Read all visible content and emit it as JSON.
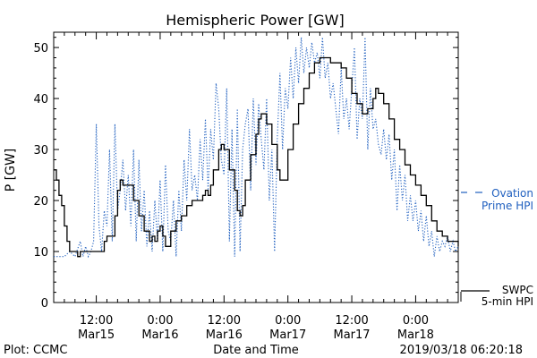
{
  "chart_data": {
    "type": "line",
    "title": "Hemispheric Power [GW]",
    "ylabel": "P [GW]",
    "xlabel": "Date and Time",
    "ylim": [
      0,
      53
    ],
    "yticks": [
      0,
      10,
      20,
      30,
      40,
      50
    ],
    "xlim_hours": [
      0,
      76
    ],
    "x_ticks": [
      {
        "label": "12:00",
        "date": "Mar15"
      },
      {
        "label": "0:00",
        "date": "Mar16"
      },
      {
        "label": "12:00",
        "date": "Mar16"
      },
      {
        "label": "0:00",
        "date": "Mar17"
      },
      {
        "label": "12:00",
        "date": "Mar17"
      },
      {
        "label": "0:00",
        "date": "Mar18"
      }
    ],
    "grid": false,
    "colors": {
      "swpc": "#000000",
      "ovation": "#1f5fbf"
    },
    "series": [
      {
        "key": "swpc",
        "legend_line1": "SWPC",
        "legend_line2": "5-min HPI",
        "style": "solid",
        "points": [
          [
            0,
            26
          ],
          [
            0.5,
            24
          ],
          [
            1,
            21
          ],
          [
            1.5,
            19
          ],
          [
            2,
            15
          ],
          [
            2.5,
            12
          ],
          [
            3,
            10
          ],
          [
            4,
            10
          ],
          [
            4.5,
            9
          ],
          [
            5,
            10
          ],
          [
            6,
            10
          ],
          [
            7,
            10
          ],
          [
            8,
            10
          ],
          [
            9,
            10
          ],
          [
            9.5,
            12
          ],
          [
            10,
            13
          ],
          [
            11,
            13
          ],
          [
            11.5,
            17
          ],
          [
            12,
            22
          ],
          [
            12.5,
            24
          ],
          [
            13,
            23
          ],
          [
            14,
            23
          ],
          [
            15,
            20
          ],
          [
            16,
            17
          ],
          [
            17,
            14
          ],
          [
            18,
            12
          ],
          [
            18.5,
            13
          ],
          [
            19,
            12
          ],
          [
            19.5,
            14
          ],
          [
            20,
            15
          ],
          [
            20.5,
            13
          ],
          [
            21,
            11
          ],
          [
            21.5,
            11
          ],
          [
            22,
            14
          ],
          [
            23,
            16
          ],
          [
            24,
            17
          ],
          [
            25,
            19
          ],
          [
            26,
            20
          ],
          [
            27,
            20
          ],
          [
            28,
            21
          ],
          [
            28.5,
            22
          ],
          [
            29,
            21
          ],
          [
            29.5,
            23
          ],
          [
            30,
            26
          ],
          [
            31,
            30
          ],
          [
            31.5,
            31
          ],
          [
            32,
            30
          ],
          [
            33,
            26
          ],
          [
            34,
            22
          ],
          [
            34.5,
            18
          ],
          [
            35,
            17
          ],
          [
            35.5,
            19
          ],
          [
            36,
            24
          ],
          [
            37,
            29
          ],
          [
            38,
            33
          ],
          [
            38.5,
            36
          ],
          [
            39,
            37
          ],
          [
            40,
            35
          ],
          [
            41,
            31
          ],
          [
            42,
            26
          ],
          [
            42.5,
            24
          ],
          [
            43,
            24
          ],
          [
            44,
            30
          ],
          [
            45,
            35
          ],
          [
            46,
            39
          ],
          [
            47,
            42
          ],
          [
            48,
            45
          ],
          [
            49,
            47
          ],
          [
            50,
            48
          ],
          [
            51,
            48
          ],
          [
            52,
            47
          ],
          [
            53,
            47
          ],
          [
            54,
            46
          ],
          [
            55,
            44
          ],
          [
            56,
            41
          ],
          [
            57,
            39
          ],
          [
            58,
            37
          ],
          [
            59,
            38
          ],
          [
            60,
            40
          ],
          [
            60.5,
            42
          ],
          [
            61,
            41
          ],
          [
            62,
            39
          ],
          [
            63,
            36
          ],
          [
            64,
            32
          ],
          [
            65,
            30
          ],
          [
            66,
            27
          ],
          [
            67,
            25
          ],
          [
            68,
            23
          ],
          [
            69,
            21
          ],
          [
            70,
            19
          ],
          [
            71,
            16
          ],
          [
            72,
            14
          ],
          [
            73,
            13
          ],
          [
            74,
            12
          ],
          [
            75,
            12
          ],
          [
            76,
            11
          ]
        ]
      },
      {
        "key": "ovation",
        "legend_line1": "Ovation",
        "legend_line2": "Prime HPI",
        "style": "dotted",
        "points": [
          [
            0,
            9
          ],
          [
            1,
            9
          ],
          [
            2,
            9
          ],
          [
            3,
            10
          ],
          [
            4,
            9
          ],
          [
            5,
            12
          ],
          [
            5.5,
            9
          ],
          [
            6,
            11
          ],
          [
            6.5,
            9
          ],
          [
            7,
            10
          ],
          [
            7.5,
            12
          ],
          [
            8,
            35
          ],
          [
            8.5,
            15
          ],
          [
            9,
            10
          ],
          [
            9.5,
            18
          ],
          [
            10,
            15
          ],
          [
            10.5,
            30
          ],
          [
            11,
            12
          ],
          [
            11.5,
            35
          ],
          [
            12,
            18
          ],
          [
            12.5,
            22
          ],
          [
            13,
            28
          ],
          [
            13.5,
            18
          ],
          [
            14,
            25
          ],
          [
            14.5,
            15
          ],
          [
            15,
            30
          ],
          [
            15.5,
            12
          ],
          [
            16,
            28
          ],
          [
            16.5,
            14
          ],
          [
            17,
            22
          ],
          [
            17.5,
            11
          ],
          [
            18,
            18
          ],
          [
            18.5,
            10
          ],
          [
            19,
            20
          ],
          [
            19.5,
            12
          ],
          [
            20,
            24
          ],
          [
            20.5,
            10
          ],
          [
            21,
            27
          ],
          [
            21.5,
            14
          ],
          [
            22,
            12
          ],
          [
            22.5,
            20
          ],
          [
            23,
            9
          ],
          [
            23.5,
            22
          ],
          [
            24,
            14
          ],
          [
            24.5,
            28
          ],
          [
            25,
            20
          ],
          [
            25.5,
            34
          ],
          [
            26,
            22
          ],
          [
            26.5,
            25
          ],
          [
            27,
            20
          ],
          [
            27.5,
            32
          ],
          [
            28,
            24
          ],
          [
            28.5,
            36
          ],
          [
            29,
            22
          ],
          [
            29.5,
            34
          ],
          [
            30,
            28
          ],
          [
            30.5,
            43
          ],
          [
            31,
            38
          ],
          [
            31.5,
            28
          ],
          [
            32,
            25
          ],
          [
            32.5,
            42
          ],
          [
            33,
            12
          ],
          [
            33.5,
            34
          ],
          [
            34,
            9
          ],
          [
            34.5,
            38
          ],
          [
            35,
            10
          ],
          [
            35.5,
            30
          ],
          [
            36,
            35
          ],
          [
            36.5,
            38
          ],
          [
            37,
            22
          ],
          [
            37.5,
            40
          ],
          [
            38,
            27
          ],
          [
            38.5,
            39
          ],
          [
            39,
            32
          ],
          [
            39.5,
            26
          ],
          [
            40,
            40
          ],
          [
            40.5,
            20
          ],
          [
            41,
            30
          ],
          [
            41.5,
            10
          ],
          [
            42,
            32
          ],
          [
            42.5,
            45
          ],
          [
            43,
            30
          ],
          [
            43.5,
            42
          ],
          [
            44,
            38
          ],
          [
            44.5,
            48
          ],
          [
            45,
            40
          ],
          [
            45.5,
            50
          ],
          [
            46,
            43
          ],
          [
            46.5,
            52
          ],
          [
            47,
            45
          ],
          [
            47.5,
            50
          ],
          [
            48,
            46
          ],
          [
            48.5,
            51
          ],
          [
            49,
            47
          ],
          [
            49.5,
            49
          ],
          [
            50,
            44
          ],
          [
            50.5,
            52
          ],
          [
            51,
            44
          ],
          [
            51.5,
            47
          ],
          [
            52,
            40
          ],
          [
            52.5,
            43
          ],
          [
            53,
            38
          ],
          [
            53.5,
            33
          ],
          [
            54,
            46
          ],
          [
            54.5,
            36
          ],
          [
            55,
            40
          ],
          [
            55.5,
            34
          ],
          [
            56,
            42
          ],
          [
            56.5,
            50
          ],
          [
            57,
            32
          ],
          [
            57.5,
            40
          ],
          [
            58,
            36
          ],
          [
            58.5,
            52
          ],
          [
            59,
            30
          ],
          [
            59.5,
            42
          ],
          [
            60,
            34
          ],
          [
            60.5,
            36
          ],
          [
            61,
            31
          ],
          [
            61.5,
            29
          ],
          [
            62,
            34
          ],
          [
            62.5,
            28
          ],
          [
            63,
            33
          ],
          [
            63.5,
            24
          ],
          [
            64,
            30
          ],
          [
            64.5,
            18
          ],
          [
            65,
            27
          ],
          [
            65.5,
            20
          ],
          [
            66,
            25
          ],
          [
            66.5,
            16
          ],
          [
            67,
            21
          ],
          [
            67.5,
            16
          ],
          [
            68,
            20
          ],
          [
            68.5,
            14
          ],
          [
            69,
            18
          ],
          [
            69.5,
            12
          ],
          [
            70,
            17
          ],
          [
            70.5,
            11
          ],
          [
            71,
            14
          ],
          [
            71.5,
            9
          ],
          [
            72,
            13
          ],
          [
            72.5,
            10
          ],
          [
            73,
            12
          ],
          [
            73.5,
            11
          ],
          [
            74,
            13
          ],
          [
            74.5,
            10
          ],
          [
            75,
            12
          ],
          [
            75.5,
            10
          ],
          [
            76,
            11
          ]
        ]
      }
    ]
  },
  "footer": {
    "left": "Plot: CCMC",
    "center": "Date and Time",
    "right": "2019/03/18 06:20:18"
  }
}
